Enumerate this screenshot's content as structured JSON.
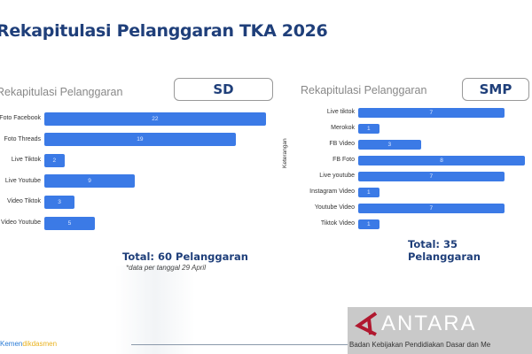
{
  "title": "Rekapitulasi Pelanggaran TKA 2026",
  "colors": {
    "bar": "#3b7ae6",
    "title": "#1f3f7a"
  },
  "sd": {
    "subtitle": "Rekapitulasi Pelanggaran",
    "level": "SD",
    "total": "Total: 60 Pelanggaran",
    "note": "*data per tanggal 29 April",
    "chart_data": {
      "type": "bar",
      "orientation": "horizontal",
      "categories": [
        "Foto Facebook",
        "Foto Threads",
        "Live Tiktok",
        "Live Youtube",
        "Video Tiktok",
        "Video Youtube"
      ],
      "values": [
        22,
        19,
        2,
        9,
        3,
        5
      ]
    }
  },
  "smp": {
    "subtitle": "Rekapitulasi Pelanggaran",
    "level": "SMP",
    "total": "Total: 35 Pelanggaran",
    "ylabel": "Keterangan",
    "chart_data": {
      "type": "bar",
      "orientation": "horizontal",
      "categories": [
        "Live tiktok",
        "Merokok",
        "FB Video",
        "FB Foto",
        "Live youtube",
        "Instagram Video",
        "Youtube Video",
        "Tiktok Video"
      ],
      "values": [
        7,
        1,
        3,
        8,
        7,
        1,
        7,
        1
      ]
    }
  },
  "footer": {
    "brand_a": "Kemen",
    "brand_b": "dikdasmen",
    "watermark": "ANTARA",
    "caption": "Badan Kebijakan Pendidiakan Dasar dan Me"
  }
}
